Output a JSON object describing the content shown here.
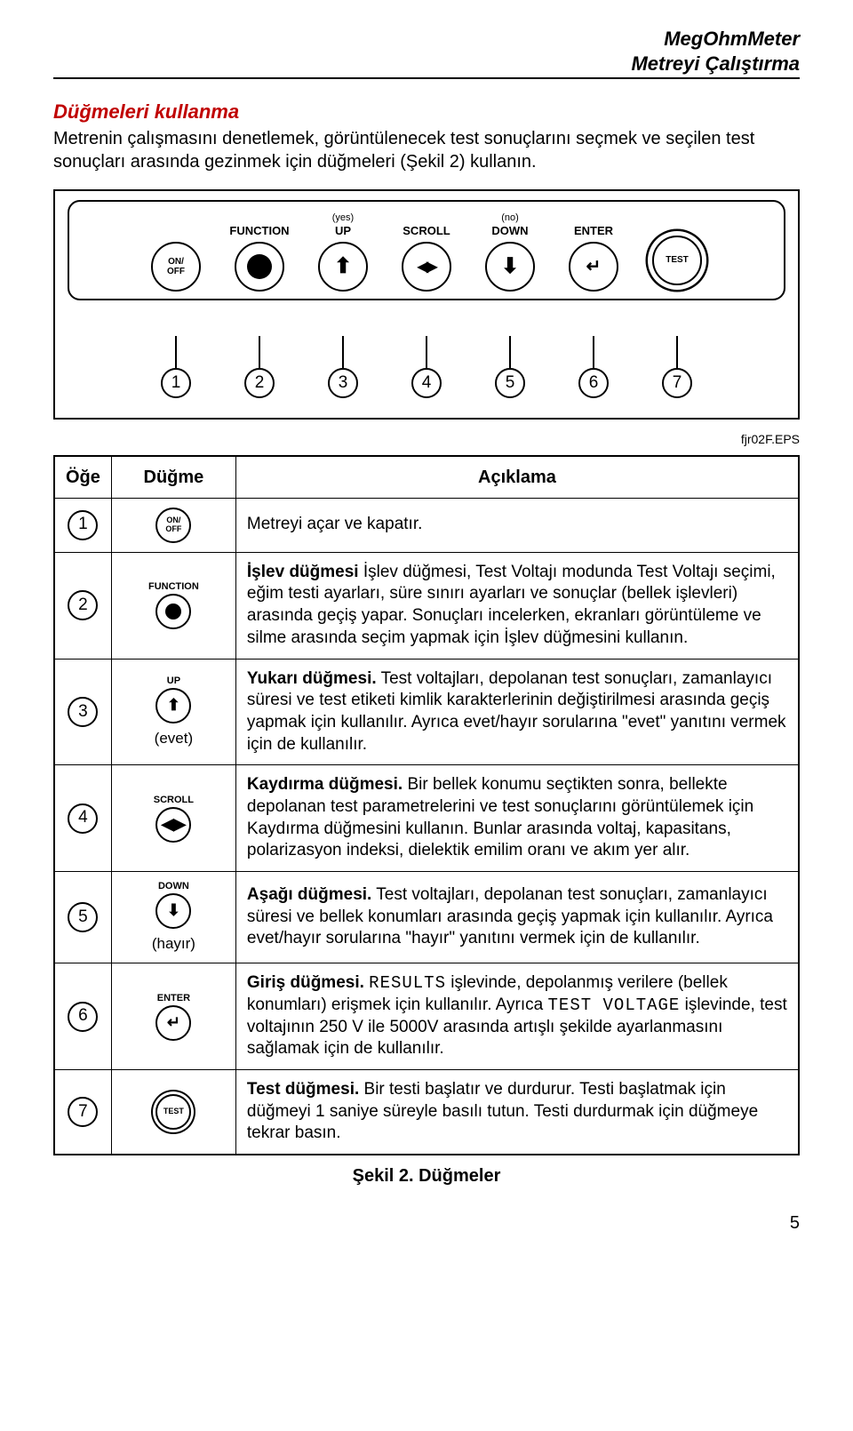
{
  "header": {
    "line1": "MegOhmMeter",
    "line2": "Metreyi Çalıştırma"
  },
  "section_title": "Düğmeleri kullanma",
  "intro": "Metrenin çalışmasını denetlemek, görüntülenecek test sonuçlarını seçmek ve seçilen test sonuçları arasında gezinmek için düğmeleri (Şekil 2) kullanın.",
  "panel": {
    "buttons": [
      {
        "top": "",
        "top_sub": "",
        "inner": "ON/\nOFF",
        "type": "text"
      },
      {
        "top": "FUNCTION",
        "top_sub": "",
        "type": "filled"
      },
      {
        "top": "UP",
        "top_sub": "(yes)",
        "type": "arrow-up"
      },
      {
        "top": "SCROLL",
        "top_sub": "",
        "type": "scroll"
      },
      {
        "top": "DOWN",
        "top_sub": "(no)",
        "type": "arrow-down"
      },
      {
        "top": "ENTER",
        "top_sub": "",
        "type": "enter"
      },
      {
        "top": "",
        "top_sub": "",
        "inner": "TEST",
        "type": "text-double"
      }
    ],
    "leaders": [
      "1",
      "2",
      "3",
      "4",
      "5",
      "6",
      "7"
    ]
  },
  "eps": "fjr02F.EPS",
  "table": {
    "headers": {
      "item": "Öğe",
      "button": "Düğme",
      "desc": "Açıklama"
    },
    "rows": [
      {
        "num": "1",
        "btn": {
          "lbl": "ON/\nOFF",
          "type": "text-sm"
        },
        "desc_html": "Metreyi açar ve kapatır."
      },
      {
        "num": "2",
        "btn": {
          "lbl": "FUNCTION",
          "type": "filled"
        },
        "desc_html": "<b>İşlev düğmesi</b> İşlev düğmesi, Test Voltajı modunda Test Voltajı seçimi, eğim testi ayarları, süre sınırı ayarları ve sonuçlar (bellek işlevleri) arasında geçiş yapar. Sonuçları incelerken, ekranları görüntüleme ve silme arasında seçim yapmak için İşlev düğmesini kullanın."
      },
      {
        "num": "3",
        "btn": {
          "lbl": "UP",
          "type": "arrow-up",
          "sub": "(evet)"
        },
        "desc_html": "<b>Yukarı düğmesi.</b> Test voltajları, depolanan test sonuçları, zamanlayıcı süresi ve test etiketi kimlik karakterlerinin değiştirilmesi arasında geçiş yapmak için kullanılır. Ayrıca evet/hayır sorularına \"evet\" yanıtını vermek için de kullanılır."
      },
      {
        "num": "4",
        "btn": {
          "lbl": "SCROLL",
          "type": "scroll"
        },
        "desc_html": "<b>Kaydırma düğmesi.</b> Bir bellek konumu seçtikten sonra, bellekte depolanan test parametrelerini ve test sonuçlarını görüntülemek için Kaydırma düğmesini kullanın. Bunlar arasında voltaj, kapasitans, polarizasyon indeksi, dielektik emilim oranı ve akım yer alır."
      },
      {
        "num": "5",
        "btn": {
          "lbl": "DOWN",
          "type": "arrow-down",
          "sub": "(hayır)"
        },
        "desc_html": "<b>Aşağı düğmesi.</b> Test voltajları, depolanan test sonuçları, zamanlayıcı süresi ve bellek konumları arasında geçiş yapmak için kullanılır. Ayrıca evet/hayır sorularına \"hayır\" yanıtını vermek için de kullanılır."
      },
      {
        "num": "6",
        "btn": {
          "lbl": "ENTER",
          "type": "enter"
        },
        "desc_html": "<b>Giriş düğmesi.</b> <span class=\"mono\">RESULTS</span> işlevinde, depolanmış verilere (bellek konumları) erişmek için kullanılır. Ayrıca <span class=\"mono\">TEST VOLTAGE</span> işlevinde, test voltajının 250 V ile 5000V arasında artışlı şekilde ayarlanmasını sağlamak için de kullanılır."
      },
      {
        "num": "7",
        "btn": {
          "lbl": "TEST",
          "type": "text-double-sm"
        },
        "desc_html": "<b>Test düğmesi.</b> Bir testi başlatır ve durdurur. Testi başlatmak için düğmeyi 1 saniye süreyle basılı tutun. Testi durdurmak için düğmeye tekrar basın."
      }
    ]
  },
  "caption": "Şekil 2. Düğmeler",
  "page": "5"
}
